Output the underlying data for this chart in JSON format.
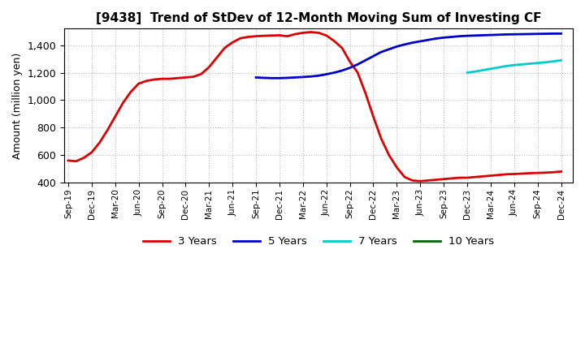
{
  "title": "[9438]  Trend of StDev of 12-Month Moving Sum of Investing CF",
  "ylabel": "Amount (million yen)",
  "ylim": [
    400,
    1520
  ],
  "yticks": [
    400,
    600,
    800,
    1000,
    1200,
    1400
  ],
  "background_color": "#ffffff",
  "grid_color": "#bbbbbb",
  "legend_labels": [
    "3 Years",
    "5 Years",
    "7 Years",
    "10 Years"
  ],
  "legend_colors": [
    "#dd0000",
    "#0000cc",
    "#00cccc",
    "#006600"
  ],
  "series_3y_x": [
    0,
    1,
    2,
    3,
    4,
    5,
    6,
    7,
    8,
    9,
    10,
    11,
    12,
    13,
    14,
    15,
    16,
    17,
    18,
    19,
    20,
    21,
    22,
    23,
    24,
    25,
    26,
    27,
    28,
    29,
    30,
    31,
    32,
    33,
    34,
    35,
    36,
    37,
    38,
    39,
    40,
    41,
    42,
    43,
    44,
    45,
    46,
    47,
    48,
    49,
    50,
    51,
    52,
    53,
    54,
    55,
    56,
    57,
    58,
    59,
    60,
    61,
    62,
    63
  ],
  "series_3y_y": [
    560,
    555,
    580,
    620,
    690,
    780,
    880,
    980,
    1060,
    1120,
    1140,
    1150,
    1155,
    1155,
    1160,
    1165,
    1170,
    1190,
    1240,
    1310,
    1380,
    1420,
    1450,
    1460,
    1465,
    1468,
    1470,
    1472,
    1465,
    1480,
    1490,
    1495,
    1490,
    1470,
    1430,
    1380,
    1280,
    1200,
    1050,
    880,
    720,
    600,
    510,
    440,
    415,
    410,
    415,
    420,
    425,
    430,
    435,
    435,
    440,
    445,
    450,
    455,
    460,
    462,
    465,
    468,
    470,
    472,
    475,
    480
  ],
  "series_5y_x": [
    24,
    25,
    26,
    27,
    28,
    29,
    30,
    31,
    32,
    33,
    34,
    35,
    36,
    37,
    38,
    39,
    40,
    41,
    42,
    43,
    44,
    45,
    46,
    47,
    48,
    49,
    50,
    51,
    52,
    53,
    54,
    55,
    56,
    57,
    58,
    59,
    60,
    61,
    62,
    63
  ],
  "series_5y_y": [
    1165,
    1162,
    1160,
    1160,
    1162,
    1165,
    1168,
    1172,
    1178,
    1188,
    1200,
    1215,
    1235,
    1260,
    1290,
    1320,
    1350,
    1370,
    1390,
    1405,
    1418,
    1428,
    1438,
    1448,
    1455,
    1460,
    1465,
    1468,
    1470,
    1472,
    1474,
    1476,
    1478,
    1479,
    1480,
    1481,
    1482,
    1483,
    1484,
    1484
  ],
  "series_7y_x": [
    51,
    52,
    53,
    54,
    55,
    56,
    57,
    58,
    59,
    60,
    61,
    62,
    63
  ],
  "series_7y_y": [
    1200,
    1208,
    1218,
    1228,
    1238,
    1248,
    1255,
    1260,
    1265,
    1270,
    1275,
    1282,
    1290
  ],
  "series_10y_x": [],
  "series_10y_y": [],
  "x_tick_labels": [
    "Sep-19",
    "Dec-19",
    "Mar-20",
    "Jun-20",
    "Sep-20",
    "Dec-20",
    "Mar-21",
    "Jun-21",
    "Sep-21",
    "Dec-21",
    "Mar-22",
    "Jun-22",
    "Sep-22",
    "Dec-22",
    "Mar-23",
    "Jun-23",
    "Sep-23",
    "Dec-23",
    "Mar-24",
    "Jun-24",
    "Sep-24",
    "Dec-24"
  ],
  "x_tick_positions": [
    0,
    3,
    6,
    9,
    12,
    15,
    18,
    21,
    24,
    27,
    30,
    33,
    36,
    39,
    42,
    45,
    48,
    51,
    54,
    57,
    60,
    63
  ]
}
